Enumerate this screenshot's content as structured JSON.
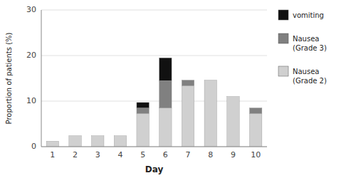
{
  "chart_data": {
    "type": "bar",
    "stacked": true,
    "xlabel": "Day",
    "ylabel": "Proportion of patients (%)",
    "categories": [
      "1",
      "2",
      "3",
      "4",
      "5",
      "6",
      "7",
      "8",
      "9",
      "10"
    ],
    "series": [
      {
        "name": "Nausea\n(Grade 2)",
        "color": "#d0d0d0",
        "values": [
          1.2,
          2.4,
          2.4,
          2.4,
          7.3,
          8.5,
          13.4,
          14.6,
          11.0,
          7.3
        ]
      },
      {
        "name": "Nausea\n(Grade 3)",
        "color": "#808080",
        "values": [
          0,
          0,
          0,
          0,
          1.2,
          6.0,
          1.2,
          0,
          0,
          1.2
        ]
      },
      {
        "name": "vomiting",
        "color": "#111111",
        "values": [
          0,
          0,
          0,
          0,
          1.2,
          5.0,
          0,
          0,
          0,
          0
        ]
      }
    ],
    "ylim": [
      0,
      30
    ],
    "yticks": [
      0,
      10,
      20,
      30
    ],
    "grid": true,
    "legend": "right"
  }
}
